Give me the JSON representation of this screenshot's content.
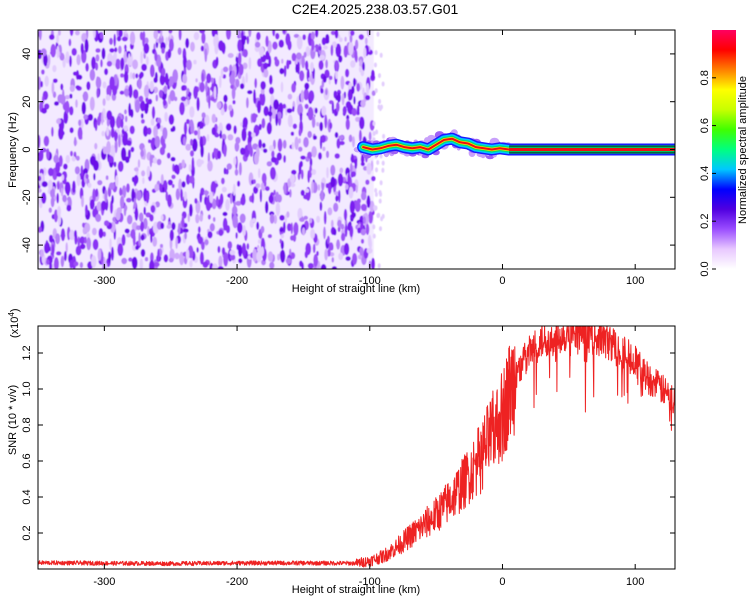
{
  "title": "C2E4.2025.238.03.57.G01",
  "chart_data": [
    {
      "type": "heatmap",
      "name": "spectrogram",
      "xlabel": "Height of straight line (km)",
      "ylabel": "Frequency (Hz)",
      "xlim": [
        -350,
        130
      ],
      "ylim": [
        -50,
        50
      ],
      "xticks": [
        -300,
        -200,
        -100,
        0,
        100
      ],
      "yticks": [
        -40,
        -20,
        0,
        20,
        40
      ],
      "noise_region_x": [
        -350,
        -97
      ],
      "signal_trace": {
        "x": [
          -105,
          -98,
          -92,
          -86,
          -80,
          -74,
          -68,
          -62,
          -56,
          -50,
          -44,
          -38,
          -32,
          -26,
          -20,
          -14,
          -8,
          -2,
          5,
          130
        ],
        "y": [
          1,
          0,
          0.5,
          1.5,
          2,
          1,
          0.5,
          1,
          0,
          2,
          4,
          4.5,
          3,
          2.5,
          1,
          0.5,
          0,
          0.5,
          0,
          0
        ]
      },
      "colorbar": {
        "label": "Normalized spectral amplitude",
        "range": [
          0,
          1
        ],
        "ticks": [
          "0.0",
          "0.2",
          "0.4",
          "0.6",
          "0.8"
        ],
        "tick_values": [
          0,
          0.2,
          0.4,
          0.6,
          0.8
        ],
        "colors": [
          "#ffffff",
          "#e8c8ff",
          "#9a4dff",
          "#5000e0",
          "#0000ff",
          "#00c8ff",
          "#00ff80",
          "#40ff00",
          "#c8ff00",
          "#ffff00",
          "#ff8000",
          "#ff0000",
          "#ff0060"
        ]
      }
    },
    {
      "type": "line",
      "name": "snr",
      "xlabel": "Height of straight line (km)",
      "ylabel": "SNR (10 * v/v)",
      "scale_label": "(x10",
      "scale_exponent": "4",
      "scale_suffix": ")",
      "xlim": [
        -350,
        130
      ],
      "ylim": [
        0,
        13500
      ],
      "xticks": [
        -300,
        -200,
        -100,
        0,
        100
      ],
      "yticks": [
        2000,
        4000,
        6000,
        8000,
        10000,
        12000
      ],
      "ytick_labels": [
        "0.2",
        "0.4",
        "0.6",
        "0.8",
        "1.0",
        "1.2"
      ],
      "color": "#ee2222",
      "series": [
        {
          "name": "SNR",
          "x": [
            -350,
            -300,
            -250,
            -200,
            -150,
            -110,
            -100,
            -90,
            -80,
            -70,
            -60,
            -50,
            -40,
            -30,
            -20,
            -10,
            0,
            5,
            10,
            20,
            30,
            40,
            50,
            60,
            70,
            80,
            90,
            100,
            110,
            120,
            130
          ],
          "y": [
            350,
            320,
            300,
            330,
            330,
            320,
            450,
            700,
            1200,
            1800,
            2400,
            3000,
            3800,
            4700,
            5800,
            7200,
            8600,
            9800,
            10800,
            12000,
            12700,
            12900,
            13100,
            13200,
            12900,
            12600,
            12200,
            11500,
            10600,
            10000,
            9300
          ]
        }
      ]
    }
  ]
}
